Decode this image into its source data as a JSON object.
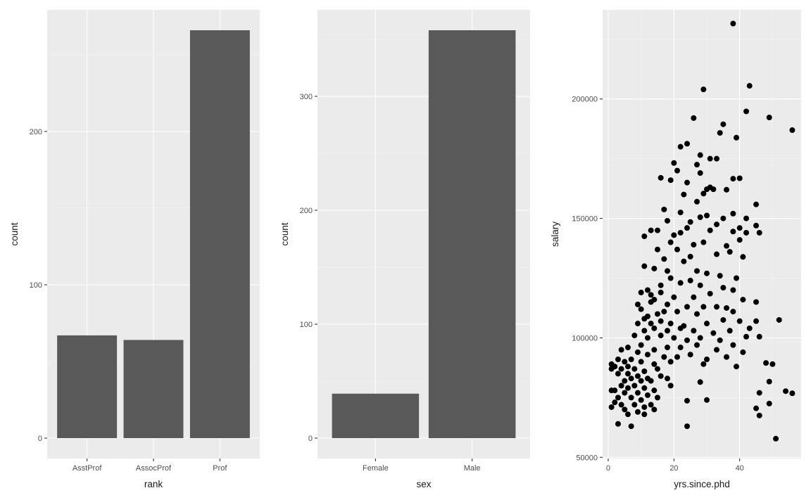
{
  "chart_data": [
    {
      "type": "bar",
      "categories": [
        "AsstProf",
        "AssocProf",
        "Prof"
      ],
      "values": [
        67,
        64,
        266
      ],
      "xlabel": "rank",
      "ylabel": "count",
      "ylim": [
        -13.3,
        279.3
      ],
      "yticks": [
        0,
        100,
        200
      ],
      "ytick_labels": [
        "0",
        "100",
        "200"
      ],
      "grid": true
    },
    {
      "type": "bar",
      "categories": [
        "Female",
        "Male"
      ],
      "values": [
        39,
        358
      ],
      "xlabel": "sex",
      "ylabel": "count",
      "ylim": [
        -17.9,
        375.9
      ],
      "yticks": [
        0,
        100,
        200,
        300
      ],
      "ytick_labels": [
        "0",
        "100",
        "200",
        "300"
      ],
      "grid": true
    },
    {
      "type": "scatter",
      "xlabel": "yrs.since.phd",
      "ylabel": "salary",
      "xlim": [
        -1.7,
        58.7
      ],
      "ylim": [
        49500,
        237300
      ],
      "xticks": [
        0,
        20,
        40
      ],
      "xtick_labels": [
        "0",
        "20",
        "40"
      ],
      "yticks": [
        50000,
        100000,
        150000,
        200000
      ],
      "ytick_labels": [
        "50000",
        "100000",
        "150000",
        "200000"
      ],
      "grid": true,
      "points": [
        [
          38,
          231545
        ],
        [
          43,
          205500
        ],
        [
          29,
          204000
        ],
        [
          42,
          194800
        ],
        [
          49,
          192253
        ],
        [
          26,
          192000
        ],
        [
          56,
          186960
        ],
        [
          39,
          183800
        ],
        [
          34,
          185800
        ],
        [
          35,
          189409
        ],
        [
          24,
          181257
        ],
        [
          22,
          180000
        ],
        [
          28,
          176500
        ],
        [
          31,
          175000
        ],
        [
          33,
          175000
        ],
        [
          20,
          173200
        ],
        [
          27,
          172500
        ],
        [
          21,
          170000
        ],
        [
          28,
          169000
        ],
        [
          38,
          166600
        ],
        [
          40,
          166800
        ],
        [
          16,
          167000
        ],
        [
          19,
          166000
        ],
        [
          24,
          165000
        ],
        [
          30,
          162200
        ],
        [
          36,
          162000
        ],
        [
          31,
          163000
        ],
        [
          32,
          162200
        ],
        [
          23,
          160000
        ],
        [
          29,
          160400
        ],
        [
          27,
          157000
        ],
        [
          45,
          155865
        ],
        [
          17,
          153750
        ],
        [
          22,
          152500
        ],
        [
          30,
          151200
        ],
        [
          38,
          152000
        ],
        [
          28,
          150500
        ],
        [
          35,
          150000
        ],
        [
          42,
          150000
        ],
        [
          18,
          149000
        ],
        [
          25,
          148500
        ],
        [
          33,
          147500
        ],
        [
          45,
          147000
        ],
        [
          40,
          146000
        ],
        [
          24,
          146000
        ],
        [
          15,
          145000
        ],
        [
          13,
          145000
        ],
        [
          11,
          142500
        ],
        [
          20,
          143000
        ],
        [
          22,
          144000
        ],
        [
          31,
          145000
        ],
        [
          38,
          144500
        ],
        [
          42,
          144000
        ],
        [
          46,
          144000
        ],
        [
          29,
          140000
        ],
        [
          40,
          141000
        ],
        [
          19,
          140000
        ],
        [
          26,
          139000
        ],
        [
          36,
          138500
        ],
        [
          15,
          137000
        ],
        [
          21,
          137000
        ],
        [
          33,
          135000
        ],
        [
          37,
          136000
        ],
        [
          41,
          133900
        ],
        [
          25,
          134000
        ],
        [
          17,
          133000
        ],
        [
          23,
          132000
        ],
        [
          11,
          130000
        ],
        [
          14,
          129000
        ],
        [
          18,
          128000
        ],
        [
          27,
          128000
        ],
        [
          30,
          127000
        ],
        [
          34,
          126000
        ],
        [
          39,
          125000
        ],
        [
          19,
          125000
        ],
        [
          25,
          124000
        ],
        [
          12,
          120000
        ],
        [
          13,
          118000
        ],
        [
          16,
          122000
        ],
        [
          22,
          123000
        ],
        [
          28,
          122000
        ],
        [
          35,
          121000
        ],
        [
          38,
          120000
        ],
        [
          16,
          119000
        ],
        [
          10,
          119000
        ],
        [
          14,
          116000
        ],
        [
          20,
          117000
        ],
        [
          26,
          117000
        ],
        [
          31,
          118500
        ],
        [
          41,
          116000
        ],
        [
          9,
          114000
        ],
        [
          13,
          115000
        ],
        [
          18,
          114000
        ],
        [
          24,
          113000
        ],
        [
          29,
          113000
        ],
        [
          33,
          113000
        ],
        [
          45,
          115000
        ],
        [
          36,
          112500
        ],
        [
          10,
          112000
        ],
        [
          15,
          110000
        ],
        [
          12,
          109000
        ],
        [
          17,
          111000
        ],
        [
          21,
          111000
        ],
        [
          27,
          110000
        ],
        [
          38,
          111000
        ],
        [
          11,
          108000
        ],
        [
          13,
          106000
        ],
        [
          16,
          107000
        ],
        [
          19,
          106000
        ],
        [
          23,
          105000
        ],
        [
          30,
          106000
        ],
        [
          35,
          107500
        ],
        [
          45,
          107000
        ],
        [
          40,
          107000
        ],
        [
          52,
          107500
        ],
        [
          14,
          104000
        ],
        [
          18,
          103000
        ],
        [
          22,
          104000
        ],
        [
          26,
          103000
        ],
        [
          32,
          102000
        ],
        [
          37,
          103000
        ],
        [
          43,
          104000
        ],
        [
          11,
          103000
        ],
        [
          9,
          106000
        ],
        [
          8,
          101000
        ],
        [
          12,
          100000
        ],
        [
          16,
          101000
        ],
        [
          20,
          100000
        ],
        [
          24,
          99000
        ],
        [
          28,
          100000
        ],
        [
          34,
          99000
        ],
        [
          42,
          100500
        ],
        [
          46,
          100500
        ],
        [
          6,
          96000
        ],
        [
          10,
          97000
        ],
        [
          14,
          95000
        ],
        [
          18,
          96000
        ],
        [
          22,
          96000
        ],
        [
          27,
          97000
        ],
        [
          33,
          95000
        ],
        [
          38,
          97000
        ],
        [
          4,
          95000
        ],
        [
          9,
          94000
        ],
        [
          12,
          93000
        ],
        [
          17,
          92000
        ],
        [
          21,
          92000
        ],
        [
          25,
          93000
        ],
        [
          30,
          91000
        ],
        [
          36,
          92000
        ],
        [
          41,
          94000
        ],
        [
          3,
          91000
        ],
        [
          5,
          90000
        ],
        [
          7,
          91000
        ],
        [
          10,
          90000
        ],
        [
          14,
          89000
        ],
        [
          19,
          90000
        ],
        [
          29,
          89000
        ],
        [
          39,
          88000
        ],
        [
          48,
          89500
        ],
        [
          50,
          89000
        ],
        [
          2,
          88000
        ],
        [
          4,
          87000
        ],
        [
          6,
          88000
        ],
        [
          8,
          87000
        ],
        [
          11,
          86000
        ],
        [
          15,
          87000
        ],
        [
          1,
          89000
        ],
        [
          1,
          87000
        ],
        [
          3,
          85000
        ],
        [
          6,
          85000
        ],
        [
          9,
          84000
        ],
        [
          12,
          83000
        ],
        [
          16,
          84000
        ],
        [
          18,
          83000
        ],
        [
          5,
          82000
        ],
        [
          7,
          83000
        ],
        [
          10,
          82000
        ],
        [
          13,
          82000
        ],
        [
          28,
          81500
        ],
        [
          49,
          81700
        ],
        [
          4,
          80000
        ],
        [
          6,
          79000
        ],
        [
          8,
          80000
        ],
        [
          11,
          79000
        ],
        [
          14,
          78000
        ],
        [
          19,
          80000
        ],
        [
          2,
          78000
        ],
        [
          5,
          77000
        ],
        [
          9,
          77000
        ],
        [
          12,
          76000
        ],
        [
          46,
          77000
        ],
        [
          54,
          77700
        ],
        [
          56,
          76800
        ],
        [
          1,
          78000
        ],
        [
          3,
          75000
        ],
        [
          7,
          75000
        ],
        [
          10,
          74000
        ],
        [
          15,
          75000
        ],
        [
          24,
          73700
        ],
        [
          30,
          74000
        ],
        [
          2,
          73000
        ],
        [
          4,
          72000
        ],
        [
          8,
          72000
        ],
        [
          11,
          71000
        ],
        [
          13,
          72000
        ],
        [
          49,
          72500
        ],
        [
          1,
          71000
        ],
        [
          5,
          70000
        ],
        [
          9,
          69000
        ],
        [
          14,
          70000
        ],
        [
          45,
          70500
        ],
        [
          6,
          68000
        ],
        [
          11,
          68000
        ],
        [
          46,
          67500
        ],
        [
          3,
          64000
        ],
        [
          7,
          63000
        ],
        [
          24,
          63000
        ],
        [
          51,
          57800
        ]
      ]
    }
  ]
}
